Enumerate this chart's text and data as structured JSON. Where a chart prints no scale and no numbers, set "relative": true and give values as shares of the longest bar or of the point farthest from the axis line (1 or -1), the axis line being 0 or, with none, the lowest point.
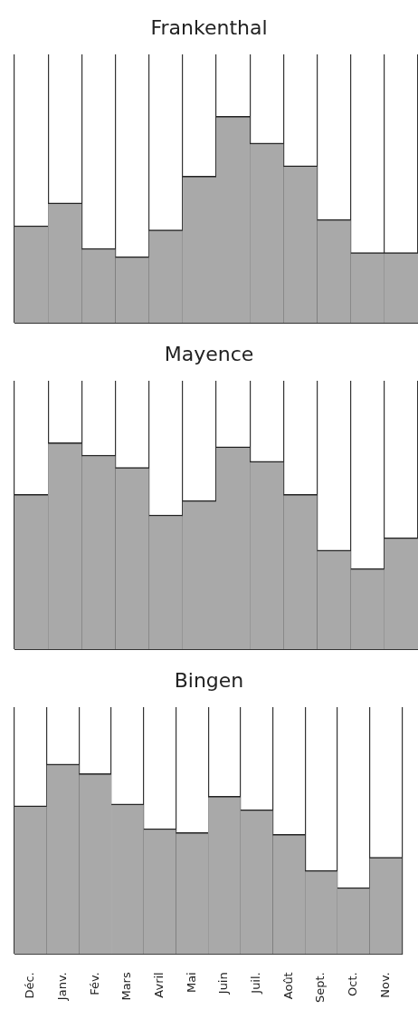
{
  "chart_data": [
    {
      "type": "bar",
      "title": "Frankenthal",
      "relative": true,
      "categories": [
        null,
        null,
        null,
        null,
        null,
        null,
        null,
        null,
        null,
        null,
        null,
        null
      ],
      "color": "#a9a9a9",
      "grid": "x",
      "tick_labels": false,
      "values": [
        0.47,
        0.58,
        0.36,
        0.32,
        0.45,
        0.71,
        1,
        0.87,
        0.76,
        0.5,
        0.34,
        0.34
      ]
    },
    {
      "type": "bar",
      "title": "Mayence",
      "relative": true,
      "categories": [
        null,
        null,
        null,
        null,
        null,
        null,
        null,
        null,
        null,
        null,
        null,
        null
      ],
      "color": "#a9a9a9",
      "grid": "x",
      "tick_labels": false,
      "values": [
        0.75,
        1,
        0.94,
        0.88,
        0.65,
        0.72,
        0.98,
        0.91,
        0.75,
        0.48,
        0.39,
        0.54
      ]
    },
    {
      "type": "bar",
      "title": "Bingen",
      "relative": true,
      "categories": [
        "Déc.",
        "Janv.",
        "Fév.",
        "Mars",
        "Avril",
        "Mai",
        "Juin",
        "Juil.",
        "Août",
        "Sept.",
        "Oct.",
        "Nov."
      ],
      "color": "#a9a9a9",
      "grid": "x",
      "tick_labels": "x",
      "values": [
        0.78,
        1,
        0.95,
        0.79,
        0.66,
        0.64,
        0.83,
        0.76,
        0.63,
        0.44,
        0.35,
        0.51
      ]
    }
  ]
}
